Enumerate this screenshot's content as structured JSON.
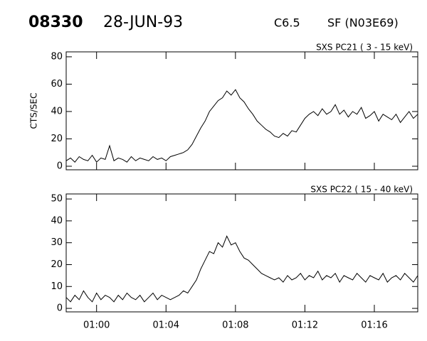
{
  "header": {
    "id": "08330",
    "date": "28-JUN-93",
    "class": "C6.5",
    "flare": "SF (N03E69)"
  },
  "chart_data": [
    {
      "type": "line",
      "title": "SXS PC21  (  3 - 15 keV)",
      "ylabel": "CTS/SEC",
      "color": "#000000",
      "xlim": [
        58.25,
        78.5
      ],
      "ylim": [
        -2.6,
        83.6
      ],
      "yticks": [
        0,
        20,
        40,
        60,
        80
      ],
      "x": [
        58.25,
        58.5,
        58.75,
        59,
        59.25,
        59.5,
        59.75,
        60,
        60.25,
        60.5,
        60.75,
        61,
        61.25,
        61.5,
        61.75,
        62,
        62.25,
        62.5,
        62.75,
        63,
        63.25,
        63.5,
        63.75,
        64,
        64.25,
        64.5,
        64.75,
        65,
        65.25,
        65.5,
        65.75,
        66,
        66.25,
        66.5,
        66.75,
        67,
        67.25,
        67.5,
        67.75,
        68,
        68.25,
        68.5,
        68.75,
        69,
        69.25,
        69.5,
        69.75,
        70,
        70.25,
        70.5,
        70.75,
        71,
        71.25,
        71.5,
        71.75,
        72,
        72.25,
        72.5,
        72.75,
        73,
        73.25,
        73.5,
        73.75,
        74,
        74.25,
        74.5,
        74.75,
        75,
        75.25,
        75.5,
        75.75,
        76,
        76.25,
        76.5,
        76.75,
        77,
        77.25,
        77.5,
        77.75,
        78,
        78.25,
        78.5
      ],
      "values": [
        4,
        6,
        3,
        7,
        5,
        4,
        8,
        3,
        6,
        5,
        15,
        4,
        6,
        5,
        3,
        7,
        4,
        6,
        5,
        4,
        7,
        5,
        6,
        4,
        7,
        8,
        9,
        10,
        12,
        16,
        22,
        28,
        33,
        40,
        44,
        48,
        50,
        55,
        52,
        56,
        50,
        47,
        42,
        38,
        33,
        30,
        27,
        25,
        22,
        21,
        24,
        22,
        26,
        25,
        30,
        35,
        38,
        40,
        37,
        42,
        38,
        40,
        45,
        38,
        41,
        36,
        40,
        38,
        43,
        35,
        37,
        40,
        33,
        38,
        36,
        34,
        38,
        32,
        36,
        40,
        35,
        38
      ]
    },
    {
      "type": "line",
      "title": "SXS PC22  ( 15 - 40 keV)",
      "color": "#000000",
      "xlim": [
        58.25,
        78.5
      ],
      "ylim": [
        -1.6,
        52.3
      ],
      "yticks": [
        0,
        10,
        20,
        30,
        40,
        50
      ],
      "xticks": [
        {
          "value": 60,
          "label": "01:00"
        },
        {
          "value": 64,
          "label": "01:04"
        },
        {
          "value": 68,
          "label": "01:08"
        },
        {
          "value": 72,
          "label": "01:12"
        },
        {
          "value": 76,
          "label": "01:16"
        }
      ],
      "x": [
        58.25,
        58.5,
        58.75,
        59,
        59.25,
        59.5,
        59.75,
        60,
        60.25,
        60.5,
        60.75,
        61,
        61.25,
        61.5,
        61.75,
        62,
        62.25,
        62.5,
        62.75,
        63,
        63.25,
        63.5,
        63.75,
        64,
        64.25,
        64.5,
        64.75,
        65,
        65.25,
        65.5,
        65.75,
        66,
        66.25,
        66.5,
        66.75,
        67,
        67.25,
        67.5,
        67.75,
        68,
        68.25,
        68.5,
        68.75,
        69,
        69.25,
        69.5,
        69.75,
        70,
        70.25,
        70.5,
        70.75,
        71,
        71.25,
        71.5,
        71.75,
        72,
        72.25,
        72.5,
        72.75,
        73,
        73.25,
        73.5,
        73.75,
        74,
        74.25,
        74.5,
        74.75,
        75,
        75.25,
        75.5,
        75.75,
        76,
        76.25,
        76.5,
        76.75,
        77,
        77.25,
        77.5,
        77.75,
        78,
        78.25,
        78.5
      ],
      "values": [
        5,
        3,
        6,
        4,
        8,
        5,
        3,
        7,
        4,
        6,
        5,
        3,
        6,
        4,
        7,
        5,
        4,
        6,
        3,
        5,
        7,
        4,
        6,
        5,
        4,
        5,
        6,
        8,
        7,
        10,
        13,
        18,
        22,
        26,
        25,
        30,
        28,
        33,
        29,
        30,
        26,
        23,
        22,
        20,
        18,
        16,
        15,
        14,
        13,
        14,
        12,
        15,
        13,
        14,
        16,
        13,
        15,
        14,
        17,
        13,
        15,
        14,
        16,
        12,
        15,
        14,
        13,
        16,
        14,
        12,
        15,
        14,
        13,
        16,
        12,
        14,
        15,
        13,
        16,
        14,
        12,
        15
      ]
    }
  ]
}
